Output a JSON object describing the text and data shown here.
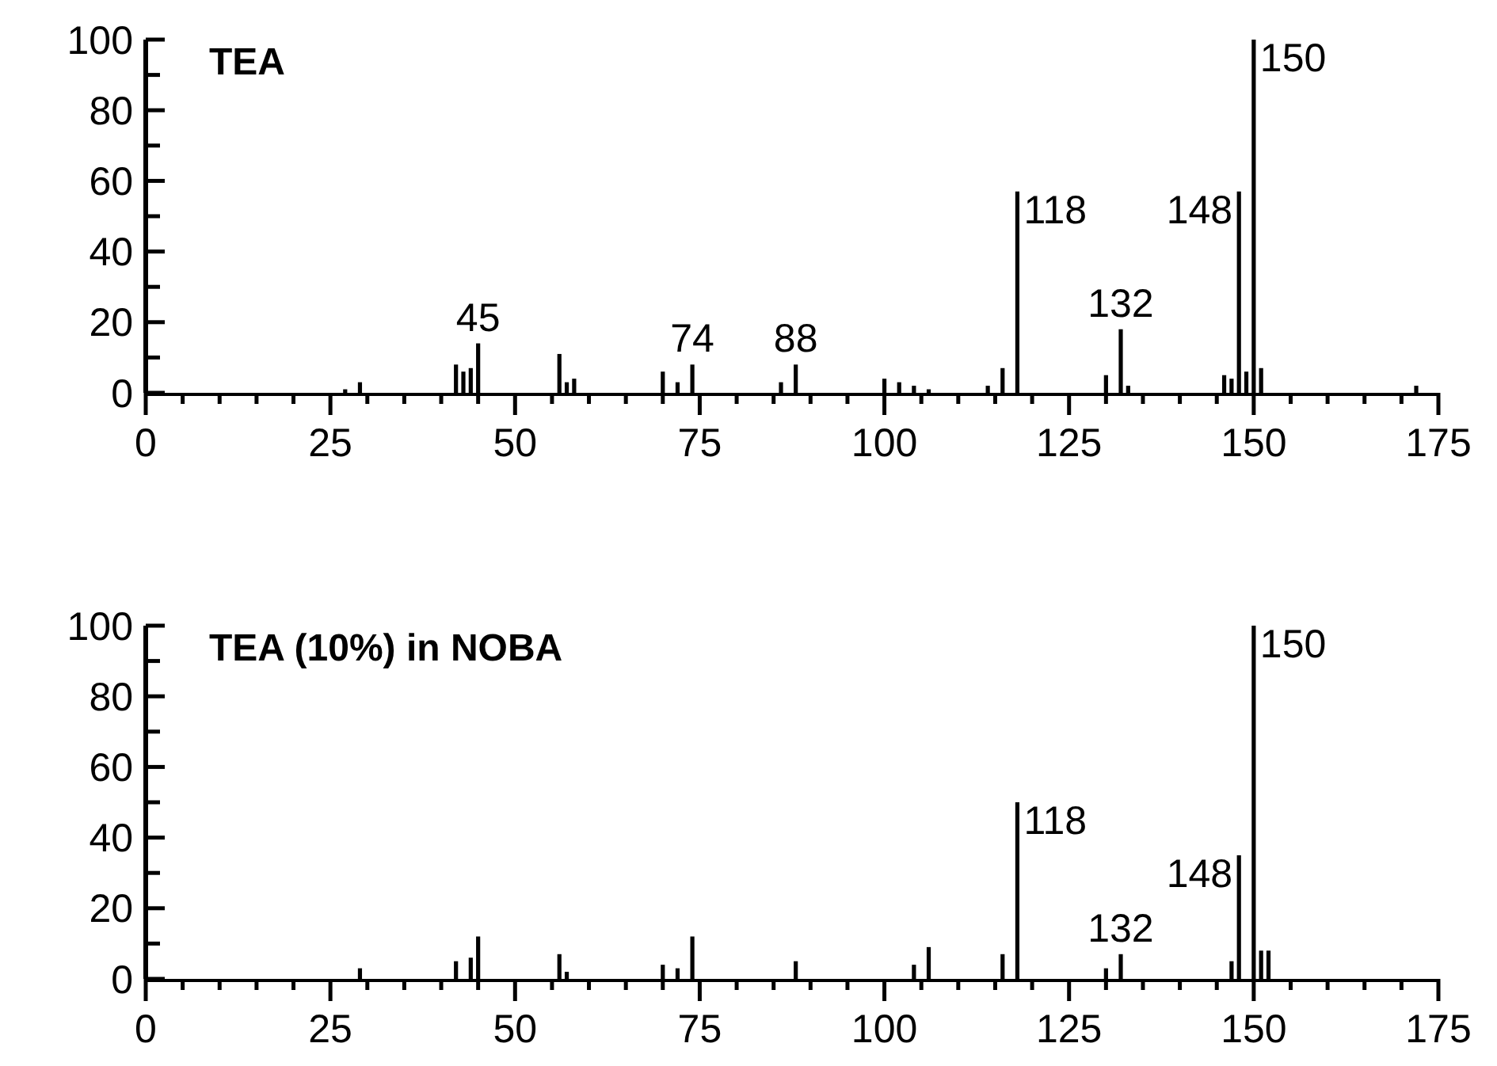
{
  "chart_data": [
    {
      "type": "bar",
      "title": "TEA",
      "x": [
        27,
        29,
        42,
        43,
        44,
        45,
        56,
        57,
        58,
        70,
        72,
        74,
        86,
        88,
        100,
        102,
        104,
        106,
        114,
        116,
        118,
        130,
        132,
        133,
        146,
        147,
        148,
        149,
        150,
        151,
        172
      ],
      "series": [
        {
          "color": "#000000",
          "values": [
            1,
            3,
            8,
            6,
            7,
            14,
            11,
            3,
            4,
            6,
            3,
            8,
            3,
            8,
            4,
            3,
            2,
            1,
            2,
            7,
            57,
            5,
            18,
            2,
            5,
            4,
            57,
            6,
            100,
            7,
            2
          ]
        }
      ],
      "xlim": [
        0,
        175
      ],
      "ylim": [
        0,
        100
      ],
      "xticks": [
        0,
        {
          "value": 5,
          "label": null
        },
        {
          "value": 10,
          "label": null
        },
        {
          "value": 15,
          "label": null
        },
        {
          "value": 20,
          "label": null
        },
        25,
        {
          "value": 30,
          "label": null
        },
        {
          "value": 35,
          "label": null
        },
        {
          "value": 40,
          "label": null
        },
        {
          "value": 45,
          "label": null
        },
        50,
        {
          "value": 55,
          "label": null
        },
        {
          "value": 60,
          "label": null
        },
        {
          "value": 65,
          "label": null
        },
        {
          "value": 70,
          "label": null
        },
        75,
        {
          "value": 80,
          "label": null
        },
        {
          "value": 85,
          "label": null
        },
        {
          "value": 90,
          "label": null
        },
        {
          "value": 95,
          "label": null
        },
        100,
        {
          "value": 105,
          "label": null
        },
        {
          "value": 110,
          "label": null
        },
        {
          "value": 115,
          "label": null
        },
        {
          "value": 120,
          "label": null
        },
        125,
        {
          "value": 130,
          "label": null
        },
        {
          "value": 135,
          "label": null
        },
        {
          "value": 140,
          "label": null
        },
        {
          "value": 145,
          "label": null
        },
        150,
        {
          "value": 155,
          "label": null
        },
        {
          "value": 160,
          "label": null
        },
        {
          "value": 165,
          "label": null
        },
        {
          "value": 170,
          "label": null
        },
        175
      ],
      "yticks": [
        0,
        {
          "value": 10,
          "label": null
        },
        20,
        {
          "value": 30,
          "label": null
        },
        40,
        {
          "value": 50,
          "label": null
        },
        60,
        {
          "value": 70,
          "label": null
        },
        80,
        {
          "value": 90,
          "label": null
        },
        100
      ],
      "annotations": [
        {
          "text": "45",
          "x": 45,
          "y": 14
        },
        {
          "text": "74",
          "x": 74,
          "y": 8
        },
        {
          "text": "88",
          "x": 88,
          "y": 8
        },
        {
          "text": "118",
          "x": 118,
          "y": 57
        },
        {
          "text": "132",
          "x": 132,
          "y": 18
        },
        {
          "text": "148",
          "x": 148,
          "y": 57
        },
        {
          "text": "150",
          "x": 150,
          "y": 100
        }
      ],
      "grid": false
    },
    {
      "type": "bar",
      "title": "TEA (10%) in NOBA",
      "x": [
        29,
        42,
        44,
        45,
        56,
        57,
        70,
        72,
        74,
        88,
        104,
        106,
        116,
        118,
        130,
        132,
        147,
        148,
        150,
        151,
        152
      ],
      "series": [
        {
          "color": "#000000",
          "values": [
            3,
            5,
            6,
            12,
            7,
            2,
            4,
            3,
            12,
            5,
            4,
            9,
            7,
            50,
            3,
            7,
            5,
            35,
            100,
            8,
            8
          ]
        }
      ],
      "xlim": [
        0,
        175
      ],
      "ylim": [
        0,
        100
      ],
      "xticks": [
        0,
        {
          "value": 5,
          "label": null
        },
        {
          "value": 10,
          "label": null
        },
        {
          "value": 15,
          "label": null
        },
        {
          "value": 20,
          "label": null
        },
        25,
        {
          "value": 30,
          "label": null
        },
        {
          "value": 35,
          "label": null
        },
        {
          "value": 40,
          "label": null
        },
        {
          "value": 45,
          "label": null
        },
        50,
        {
          "value": 55,
          "label": null
        },
        {
          "value": 60,
          "label": null
        },
        {
          "value": 65,
          "label": null
        },
        {
          "value": 70,
          "label": null
        },
        75,
        {
          "value": 80,
          "label": null
        },
        {
          "value": 85,
          "label": null
        },
        {
          "value": 90,
          "label": null
        },
        {
          "value": 95,
          "label": null
        },
        100,
        {
          "value": 105,
          "label": null
        },
        {
          "value": 110,
          "label": null
        },
        {
          "value": 115,
          "label": null
        },
        {
          "value": 120,
          "label": null
        },
        125,
        {
          "value": 130,
          "label": null
        },
        {
          "value": 135,
          "label": null
        },
        {
          "value": 140,
          "label": null
        },
        {
          "value": 145,
          "label": null
        },
        150,
        {
          "value": 155,
          "label": null
        },
        {
          "value": 160,
          "label": null
        },
        {
          "value": 165,
          "label": null
        },
        {
          "value": 170,
          "label": null
        },
        175
      ],
      "yticks": [
        0,
        {
          "value": 10,
          "label": null
        },
        20,
        {
          "value": 30,
          "label": null
        },
        40,
        {
          "value": 50,
          "label": null
        },
        60,
        {
          "value": 70,
          "label": null
        },
        80,
        {
          "value": 90,
          "label": null
        },
        100
      ],
      "annotations": [
        {
          "text": "118",
          "x": 118,
          "y": 50
        },
        {
          "text": "132",
          "x": 132,
          "y": 7
        },
        {
          "text": "148",
          "x": 148,
          "y": 35
        },
        {
          "text": "150",
          "x": 150,
          "y": 100
        }
      ],
      "grid": false
    }
  ]
}
